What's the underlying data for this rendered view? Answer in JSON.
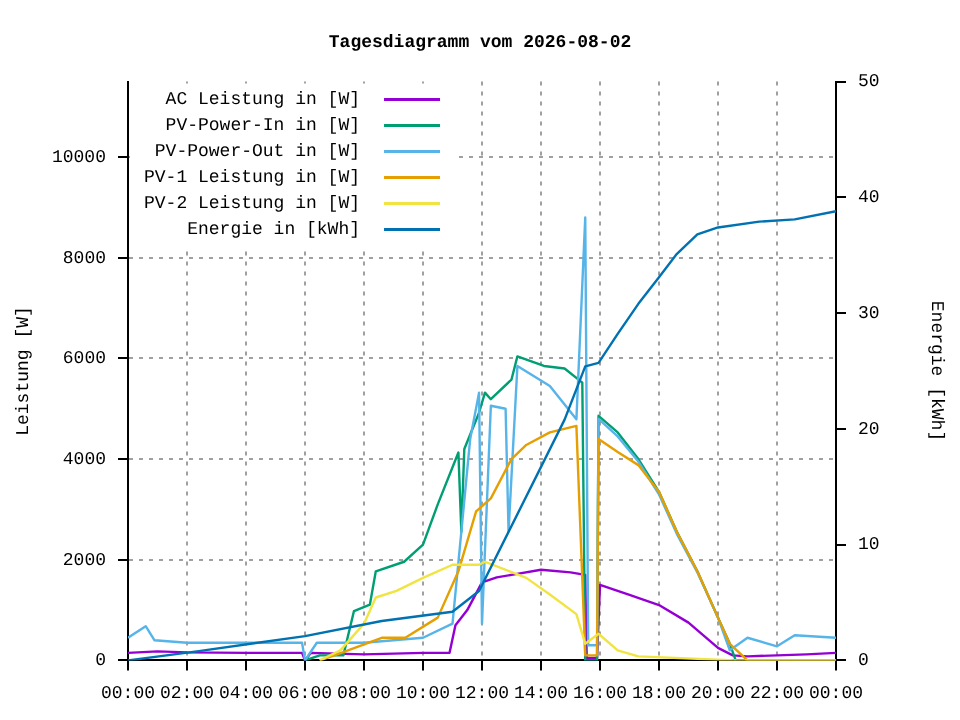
{
  "chart_data": {
    "type": "line",
    "title": "Tagesdiagramm vom 2026-08-02",
    "ylabel": "Leistung [W]",
    "y2label": "Energie [kWh]",
    "xlim": [
      0,
      24
    ],
    "xticks": [
      {
        "value": 0,
        "label": "00:00"
      },
      {
        "value": 2,
        "label": "02:00"
      },
      {
        "value": 4,
        "label": "04:00"
      },
      {
        "value": 6,
        "label": "06:00"
      },
      {
        "value": 8,
        "label": "08:00"
      },
      {
        "value": 10,
        "label": "10:00"
      },
      {
        "value": 12,
        "label": "12:00"
      },
      {
        "value": 14,
        "label": "14:00"
      },
      {
        "value": 16,
        "label": "16:00"
      },
      {
        "value": 18,
        "label": "18:00"
      },
      {
        "value": 20,
        "label": "20:00"
      },
      {
        "value": 22,
        "label": "22:00"
      },
      {
        "value": 24,
        "label": "00:00"
      }
    ],
    "ylim": [
      0,
      11500
    ],
    "yticks": [
      0,
      2000,
      4000,
      6000,
      8000,
      10000
    ],
    "y2lim": [
      0,
      50
    ],
    "y2ticks": [
      0,
      10,
      20,
      30,
      40,
      50
    ],
    "grid": true,
    "legend": "top left",
    "marker": "none",
    "series": [
      {
        "name": "AC Leistung in [W]",
        "color": "#9400d3",
        "x": [
          0,
          1,
          2,
          4,
          5.9,
          6,
          6.2,
          8,
          10,
          10.9,
          11.1,
          11.5,
          12,
          12.5,
          13,
          14,
          15,
          15.5,
          15.55,
          15.9,
          16,
          17,
          18,
          19,
          20,
          20.5,
          21,
          22,
          23,
          24
        ],
        "values": [
          150,
          180,
          160,
          150,
          150,
          0,
          150,
          120,
          150,
          150,
          700,
          1000,
          1550,
          1650,
          1700,
          1800,
          1750,
          1700,
          50,
          50,
          1500,
          1300,
          1100,
          750,
          250,
          100,
          80,
          100,
          120,
          150
        ]
      },
      {
        "name": "PV-Power-In in [W]",
        "color": "#009e73",
        "x": [
          6,
          6.5,
          7.3,
          7.66,
          8.2,
          8.4,
          9.36,
          10,
          10.5,
          11.2,
          11.3,
          11.4,
          11.9,
          12.1,
          12.3,
          13,
          13.2,
          14.1,
          14.8,
          15.4,
          15.5,
          15.9,
          15.95,
          16.6,
          17.3,
          18,
          18.6,
          19.3,
          20,
          20.4,
          20.6
        ],
        "values": [
          0,
          100,
          100,
          980,
          1110,
          1770,
          1960,
          2300,
          3100,
          4130,
          2550,
          4200,
          4920,
          5320,
          5190,
          5580,
          6040,
          5850,
          5800,
          5520,
          0,
          0,
          4860,
          4530,
          4000,
          3350,
          2560,
          1770,
          850,
          330,
          0
        ]
      },
      {
        "name": "PV-Power-Out in [W]",
        "color": "#56b4e9",
        "x": [
          0,
          0.6,
          0.9,
          2,
          4,
          5.9,
          6,
          6.4,
          8,
          10,
          11,
          11.3,
          11.6,
          11.9,
          12,
          12.3,
          12.8,
          12.9,
          13.2,
          14.3,
          15.2,
          15.5,
          15.6,
          15.9,
          15.95,
          16.6,
          17.3,
          18,
          18.6,
          19.3,
          20,
          20.4,
          21,
          22,
          22.6,
          24
        ],
        "values": [
          450,
          680,
          400,
          350,
          350,
          350,
          0,
          350,
          350,
          450,
          730,
          2560,
          4400,
          5320,
          730,
          5060,
          5000,
          2560,
          5850,
          5450,
          4790,
          8800,
          300,
          300,
          4800,
          4450,
          3950,
          3300,
          2520,
          1750,
          850,
          200,
          450,
          280,
          500,
          450
        ]
      },
      {
        "name": "PV-1 Leistung in [W]",
        "color": "#e69f00",
        "x": [
          6.5,
          7,
          8.6,
          9.4,
          10.5,
          11.2,
          11.8,
          12.3,
          13,
          13.5,
          14.3,
          15.2,
          15.5,
          15.9,
          15.95,
          16.6,
          17.3,
          18,
          18.6,
          19.3,
          20,
          20.4,
          21,
          24
        ],
        "values": [
          0,
          100,
          450,
          450,
          850,
          1770,
          2960,
          3220,
          4000,
          4280,
          4530,
          4660,
          100,
          100,
          4400,
          4140,
          3880,
          3350,
          2560,
          1770,
          850,
          330,
          0,
          0
        ]
      },
      {
        "name": "PV-2 Leistung in [W]",
        "color": "#f0e442",
        "x": [
          6.5,
          7.2,
          8,
          8.4,
          9.1,
          10,
          11,
          11.9,
          12.1,
          13.2,
          13.5,
          14.3,
          15.2,
          15.5,
          15.95,
          16.6,
          17.3,
          20.6,
          24
        ],
        "values": [
          0,
          200,
          730,
          1250,
          1380,
          1640,
          1900,
          1900,
          1960,
          1710,
          1640,
          1310,
          920,
          330,
          530,
          200,
          80,
          0,
          0
        ]
      },
      {
        "name": "Energie in [kWh]",
        "color": "#0072b2",
        "axis": "y2",
        "x": [
          0,
          2.4,
          6,
          8.6,
          11,
          11.9,
          12.9,
          13.9,
          14.8,
          15.5,
          15.95,
          16.6,
          17.3,
          18,
          18.6,
          19.3,
          20,
          21.4,
          22.6,
          24
        ],
        "values": [
          0,
          0.8,
          2.1,
          3.4,
          4.2,
          6.0,
          11.1,
          16.2,
          20.8,
          25.4,
          25.7,
          28.2,
          30.8,
          33.1,
          35.1,
          36.8,
          37.4,
          37.9,
          38.1,
          38.8
        ]
      }
    ]
  }
}
